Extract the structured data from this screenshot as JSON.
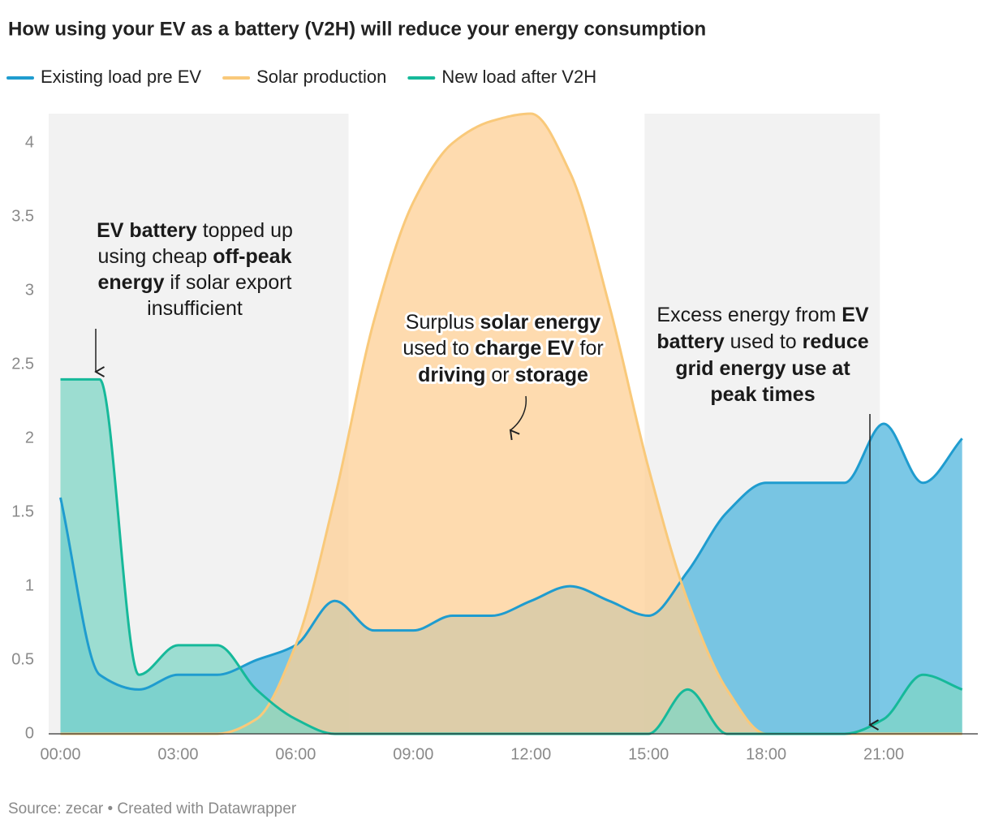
{
  "chart_data": {
    "type": "area",
    "title": "How using your EV as a battery (V2H) will reduce your energy consumption",
    "source": "Source: zecar • Created with Datawrapper",
    "legend": "top-left",
    "x": [
      0,
      1,
      2,
      3,
      4,
      5,
      6,
      7,
      8,
      9,
      10,
      11,
      12,
      13,
      14,
      15,
      16,
      17,
      18,
      19,
      20,
      21,
      22,
      23
    ],
    "xlim": [
      -0.3,
      23.4
    ],
    "xticks": [
      {
        "value": 0,
        "label": "00:00"
      },
      {
        "value": 3,
        "label": "03:00"
      },
      {
        "value": 6,
        "label": "06:00"
      },
      {
        "value": 9,
        "label": "09:00"
      },
      {
        "value": 12,
        "label": "12:00"
      },
      {
        "value": 15,
        "label": "15:00"
      },
      {
        "value": 18,
        "label": "18:00"
      },
      {
        "value": 21,
        "label": "21:00"
      }
    ],
    "ylim": [
      0,
      4.2
    ],
    "yticks": [
      0,
      0.5,
      1,
      1.5,
      2,
      2.5,
      3,
      3.5,
      4
    ],
    "grid": false,
    "shaded_ranges": [
      [
        -0.3,
        7.35
      ],
      [
        14.9,
        20.9
      ]
    ],
    "series": [
      {
        "name": "Existing load pre EV",
        "color": "#1f9ccf",
        "fill": "#4fb6dd",
        "values": [
          1.6,
          0.4,
          0.3,
          0.4,
          0.4,
          0.5,
          0.6,
          0.9,
          0.7,
          0.7,
          0.8,
          0.8,
          0.9,
          1.0,
          0.9,
          0.8,
          1.1,
          1.5,
          1.7,
          1.7,
          1.7,
          2.1,
          1.7,
          2.0
        ]
      },
      {
        "name": "Solar production",
        "color": "#f9c97a",
        "fill": "#fdcf94",
        "values": [
          0,
          0,
          0,
          0,
          0,
          0.1,
          0.6,
          1.6,
          2.8,
          3.6,
          4.0,
          4.15,
          4.2,
          3.8,
          2.9,
          1.8,
          0.9,
          0.3,
          0,
          0,
          0,
          0,
          0,
          0
        ]
      },
      {
        "name": "New load after V2H",
        "color": "#16b99a",
        "fill": "#7fd6c6",
        "values": [
          2.4,
          2.4,
          0.4,
          0.6,
          0.6,
          0.3,
          0.1,
          0,
          0,
          0,
          0,
          0,
          0,
          0,
          0,
          0,
          0.3,
          0,
          0,
          0,
          0,
          0.1,
          0.4,
          0.3
        ]
      }
    ],
    "annotations": [
      {
        "lines": [
          [
            {
              "text": "EV battery",
              "bold": true
            },
            {
              "text": " topped up",
              "bold": false
            }
          ],
          [
            {
              "text": "using cheap ",
              "bold": false
            },
            {
              "text": "off-peak",
              "bold": true
            }
          ],
          [
            {
              "text": "energy",
              "bold": true
            },
            {
              "text": " if solar export",
              "bold": false
            }
          ],
          [
            {
              "text": "insufficient",
              "bold": false
            }
          ]
        ]
      },
      {
        "lines": [
          [
            {
              "text": "Surplus ",
              "bold": false
            },
            {
              "text": "solar energy",
              "bold": true
            }
          ],
          [
            {
              "text": "used to ",
              "bold": false
            },
            {
              "text": "charge EV",
              "bold": true
            },
            {
              "text": " for",
              "bold": false
            }
          ],
          [
            {
              "text": "driving",
              "bold": true
            },
            {
              "text": " or ",
              "bold": false
            },
            {
              "text": "storage",
              "bold": true
            }
          ]
        ]
      },
      {
        "lines": [
          [
            {
              "text": "Excess energy from ",
              "bold": false
            },
            {
              "text": "EV",
              "bold": true
            }
          ],
          [
            {
              "text": "battery",
              "bold": true
            },
            {
              "text": " used to ",
              "bold": false
            },
            {
              "text": "reduce",
              "bold": true
            }
          ],
          [
            {
              "text": "grid energy use at",
              "bold": true
            }
          ],
          [
            {
              "text": "peak times",
              "bold": true
            }
          ]
        ]
      }
    ]
  }
}
